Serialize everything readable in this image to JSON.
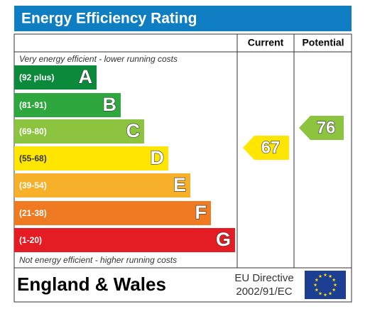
{
  "header": {
    "title": "Energy Efficiency Rating"
  },
  "columns": [
    "Current",
    "Potential"
  ],
  "top_note": "Very energy efficient - lower running costs",
  "bands": [
    {
      "range": "(92 plus)",
      "letter": "A",
      "color": "#0c8a3c"
    },
    {
      "range": "(81-91)",
      "letter": "B",
      "color": "#2ea73f"
    },
    {
      "range": "(69-80)",
      "letter": "C",
      "color": "#8cc43f"
    },
    {
      "range": "(55-68)",
      "letter": "D",
      "color": "#ffe600"
    },
    {
      "range": "(39-54)",
      "letter": "E",
      "color": "#f7b02a"
    },
    {
      "range": "(21-38)",
      "letter": "F",
      "color": "#ef7a22"
    },
    {
      "range": "(1-20)",
      "letter": "G",
      "color": "#e31d23"
    }
  ],
  "bottom_note": "Not energy efficient - higher running costs",
  "current": {
    "rating": "67",
    "color": "#ffe600"
  },
  "potential": {
    "rating": "76",
    "color": "#8cc43f"
  },
  "footer": {
    "region": "England & Wales",
    "directive": [
      "EU Directive",
      "2002/91/EC"
    ]
  }
}
